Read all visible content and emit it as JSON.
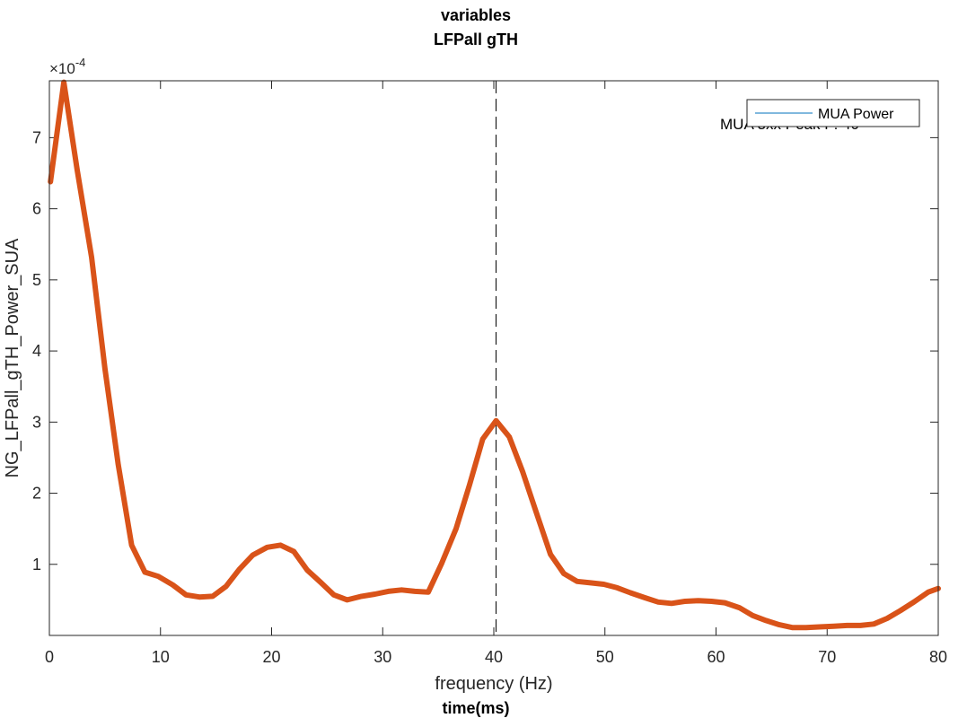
{
  "chart_data": {
    "type": "line",
    "title": "variables",
    "subtitle": "LFPall gTH",
    "xlabel": "frequency (Hz)",
    "xlabel2": "time(ms)",
    "ylabel": "NG_LFPall_gTH_Power_SUA",
    "y_exponent_label": "×10",
    "y_exponent_power": "-4",
    "xlim": [
      0,
      80
    ],
    "ylim": [
      0,
      0.00078
    ],
    "xticks": [
      0,
      10,
      20,
      30,
      40,
      50,
      60,
      70,
      80
    ],
    "xtick_labels": [
      "0",
      "10",
      "20",
      "30",
      "40",
      "50",
      "60",
      "70",
      "80"
    ],
    "yticks": [
      0.0001,
      0.0002,
      0.0003,
      0.0004,
      0.0005,
      0.0006,
      0.0007
    ],
    "ytick_labels": [
      "1",
      "2",
      "3",
      "4",
      "5",
      "6",
      "7"
    ],
    "grid": false,
    "legend": {
      "position": "top-right",
      "entries": [
        "MUA Power"
      ]
    },
    "annotation": "MUA 3xx Peak F: 40",
    "vline_x": 40.2,
    "series": [
      {
        "name": "MUA Power",
        "color": "#d95319",
        "x": [
          0.1,
          1.3,
          2.5,
          3.8,
          5.0,
          6.2,
          7.4,
          8.6,
          9.8,
          11.1,
          12.3,
          13.5,
          14.7,
          15.9,
          17.1,
          18.3,
          19.6,
          20.8,
          22.0,
          23.2,
          24.4,
          25.6,
          26.8,
          28.1,
          29.3,
          30.5,
          31.7,
          32.9,
          34.1,
          35.3,
          36.6,
          37.8,
          39.0,
          40.2,
          41.4,
          42.6,
          43.8,
          45.1,
          46.3,
          47.5,
          48.7,
          49.9,
          51.1,
          52.3,
          53.6,
          54.8,
          56.0,
          57.2,
          58.4,
          59.6,
          60.8,
          62.1,
          63.3,
          64.5,
          65.7,
          66.9,
          68.1,
          69.3,
          70.6,
          71.8,
          73.0,
          74.2,
          75.4,
          76.6,
          77.8,
          79.1,
          80.0
        ],
        "values": [
          0.000638,
          0.000778,
          0.000655,
          0.000532,
          0.000375,
          0.00024,
          0.000127,
          8.9e-05,
          8.3e-05,
          7.1e-05,
          5.7e-05,
          5.4e-05,
          5.5e-05,
          6.9e-05,
          9.3e-05,
          0.000113,
          0.000124,
          0.000127,
          0.000118,
          9.2e-05,
          7.5e-05,
          5.7e-05,
          5e-05,
          5.5e-05,
          5.8e-05,
          6.2e-05,
          6.4e-05,
          6.2e-05,
          6.1e-05,
          0.000101,
          0.00015,
          0.000211,
          0.000276,
          0.000302,
          0.000279,
          0.00023,
          0.000174,
          0.000114,
          8.7e-05,
          7.6e-05,
          7.4e-05,
          7.2e-05,
          6.7e-05,
          6e-05,
          5.3e-05,
          4.7e-05,
          4.5e-05,
          4.8e-05,
          4.9e-05,
          4.8e-05,
          4.6e-05,
          3.9e-05,
          2.8e-05,
          2.1e-05,
          1.5e-05,
          1.1e-05,
          1.1e-05,
          1.2e-05,
          1.3e-05,
          1.4e-05,
          1.4e-05,
          1.6e-05,
          2.4e-05,
          3.5e-05,
          4.7e-05,
          6.1e-05,
          6.6e-05
        ]
      }
    ]
  }
}
